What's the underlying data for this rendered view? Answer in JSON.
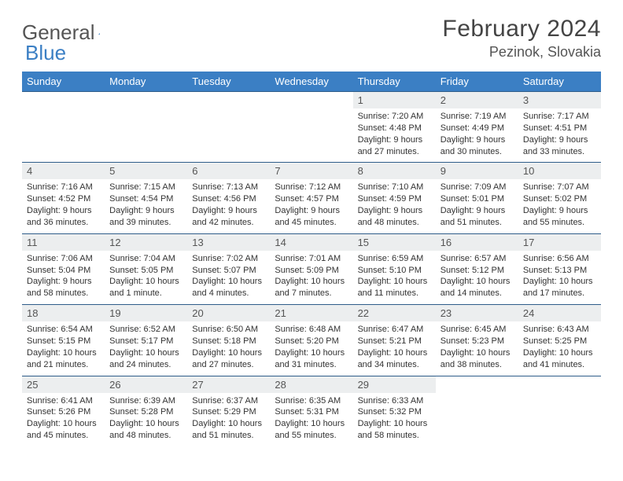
{
  "brand": {
    "word1": "General",
    "word2": "Blue"
  },
  "title": "February 2024",
  "location": "Pezinok, Slovakia",
  "colors": {
    "header_bg": "#3b7fc4",
    "header_text": "#ffffff",
    "daynum_bg": "#eceeef",
    "border": "#2f5d8a"
  },
  "weekdays": [
    "Sunday",
    "Monday",
    "Tuesday",
    "Wednesday",
    "Thursday",
    "Friday",
    "Saturday"
  ],
  "blanks_before": 4,
  "days": [
    {
      "n": "1",
      "sr": "7:20 AM",
      "ss": "4:48 PM",
      "dl": "9 hours and 27 minutes."
    },
    {
      "n": "2",
      "sr": "7:19 AM",
      "ss": "4:49 PM",
      "dl": "9 hours and 30 minutes."
    },
    {
      "n": "3",
      "sr": "7:17 AM",
      "ss": "4:51 PM",
      "dl": "9 hours and 33 minutes."
    },
    {
      "n": "4",
      "sr": "7:16 AM",
      "ss": "4:52 PM",
      "dl": "9 hours and 36 minutes."
    },
    {
      "n": "5",
      "sr": "7:15 AM",
      "ss": "4:54 PM",
      "dl": "9 hours and 39 minutes."
    },
    {
      "n": "6",
      "sr": "7:13 AM",
      "ss": "4:56 PM",
      "dl": "9 hours and 42 minutes."
    },
    {
      "n": "7",
      "sr": "7:12 AM",
      "ss": "4:57 PM",
      "dl": "9 hours and 45 minutes."
    },
    {
      "n": "8",
      "sr": "7:10 AM",
      "ss": "4:59 PM",
      "dl": "9 hours and 48 minutes."
    },
    {
      "n": "9",
      "sr": "7:09 AM",
      "ss": "5:01 PM",
      "dl": "9 hours and 51 minutes."
    },
    {
      "n": "10",
      "sr": "7:07 AM",
      "ss": "5:02 PM",
      "dl": "9 hours and 55 minutes."
    },
    {
      "n": "11",
      "sr": "7:06 AM",
      "ss": "5:04 PM",
      "dl": "9 hours and 58 minutes."
    },
    {
      "n": "12",
      "sr": "7:04 AM",
      "ss": "5:05 PM",
      "dl": "10 hours and 1 minute."
    },
    {
      "n": "13",
      "sr": "7:02 AM",
      "ss": "5:07 PM",
      "dl": "10 hours and 4 minutes."
    },
    {
      "n": "14",
      "sr": "7:01 AM",
      "ss": "5:09 PM",
      "dl": "10 hours and 7 minutes."
    },
    {
      "n": "15",
      "sr": "6:59 AM",
      "ss": "5:10 PM",
      "dl": "10 hours and 11 minutes."
    },
    {
      "n": "16",
      "sr": "6:57 AM",
      "ss": "5:12 PM",
      "dl": "10 hours and 14 minutes."
    },
    {
      "n": "17",
      "sr": "6:56 AM",
      "ss": "5:13 PM",
      "dl": "10 hours and 17 minutes."
    },
    {
      "n": "18",
      "sr": "6:54 AM",
      "ss": "5:15 PM",
      "dl": "10 hours and 21 minutes."
    },
    {
      "n": "19",
      "sr": "6:52 AM",
      "ss": "5:17 PM",
      "dl": "10 hours and 24 minutes."
    },
    {
      "n": "20",
      "sr": "6:50 AM",
      "ss": "5:18 PM",
      "dl": "10 hours and 27 minutes."
    },
    {
      "n": "21",
      "sr": "6:48 AM",
      "ss": "5:20 PM",
      "dl": "10 hours and 31 minutes."
    },
    {
      "n": "22",
      "sr": "6:47 AM",
      "ss": "5:21 PM",
      "dl": "10 hours and 34 minutes."
    },
    {
      "n": "23",
      "sr": "6:45 AM",
      "ss": "5:23 PM",
      "dl": "10 hours and 38 minutes."
    },
    {
      "n": "24",
      "sr": "6:43 AM",
      "ss": "5:25 PM",
      "dl": "10 hours and 41 minutes."
    },
    {
      "n": "25",
      "sr": "6:41 AM",
      "ss": "5:26 PM",
      "dl": "10 hours and 45 minutes."
    },
    {
      "n": "26",
      "sr": "6:39 AM",
      "ss": "5:28 PM",
      "dl": "10 hours and 48 minutes."
    },
    {
      "n": "27",
      "sr": "6:37 AM",
      "ss": "5:29 PM",
      "dl": "10 hours and 51 minutes."
    },
    {
      "n": "28",
      "sr": "6:35 AM",
      "ss": "5:31 PM",
      "dl": "10 hours and 55 minutes."
    },
    {
      "n": "29",
      "sr": "6:33 AM",
      "ss": "5:32 PM",
      "dl": "10 hours and 58 minutes."
    }
  ],
  "labels": {
    "sunrise": "Sunrise: ",
    "sunset": "Sunset: ",
    "daylight": "Daylight: "
  }
}
